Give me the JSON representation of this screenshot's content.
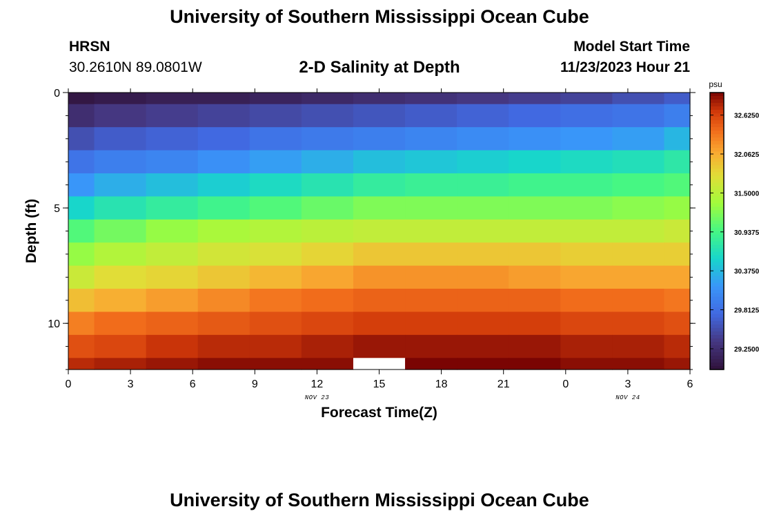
{
  "header": {
    "title": "University of Southern Mississippi Ocean Cube",
    "station": "HRSN",
    "coords": "30.2610N  89.0801W",
    "subtitle": "2-D Salinity at Depth",
    "model_label": "Model Start Time",
    "model_time": "11/23/2023 Hour 21"
  },
  "footer": {
    "title": "University of Southern Mississippi Ocean Cube"
  },
  "chart_data": {
    "type": "heatmap",
    "title": "2-D Salinity at Depth",
    "xlabel": "Forecast Time(Z)",
    "ylabel": "Depth (ft)",
    "x_tick_labels": [
      "0",
      "3",
      "6",
      "9",
      "12",
      "15",
      "18",
      "21",
      "0",
      "3",
      "6"
    ],
    "x_date_labels": [
      {
        "label": "NOV 23",
        "at_tick": 4
      },
      {
        "label": "NOV 24",
        "at_tick": 9
      }
    ],
    "x_range_hours": [
      0,
      30
    ],
    "y_tick_labels": [
      "0",
      "5",
      "10"
    ],
    "y_range_ft": [
      0,
      12
    ],
    "colorbar_unit": "psu",
    "colorbar_ticks": [
      "29.2500",
      "29.8125",
      "30.3750",
      "30.9375",
      "31.5000",
      "32.0625",
      "32.6250"
    ],
    "color_range": [
      28.95,
      32.95
    ],
    "time_edges_hours": [
      0,
      1.25,
      3.75,
      6.25,
      8.75,
      11.25,
      13.75,
      16.25,
      18.75,
      21.25,
      23.75,
      26.25,
      28.75,
      30
    ],
    "depth_edges_ft": [
      0,
      0.5,
      1.5,
      2.5,
      3.5,
      4.5,
      5.5,
      6.5,
      7.5,
      8.5,
      9.5,
      10.5,
      11.5,
      12
    ],
    "missing_value": null,
    "salinity": [
      [
        29.0,
        29.05,
        29.1,
        29.1,
        29.15,
        29.2,
        29.25,
        29.3,
        29.35,
        29.4,
        29.45,
        29.55,
        29.65
      ],
      [
        29.25,
        29.35,
        29.4,
        29.45,
        29.5,
        29.55,
        29.6,
        29.65,
        29.7,
        29.75,
        29.8,
        29.85,
        29.95
      ],
      [
        29.55,
        29.65,
        29.7,
        29.75,
        29.85,
        29.9,
        29.95,
        30.0,
        30.05,
        30.1,
        30.15,
        30.2,
        30.35
      ],
      [
        29.85,
        29.95,
        30.0,
        30.1,
        30.2,
        30.3,
        30.4,
        30.45,
        30.5,
        30.55,
        30.6,
        30.65,
        30.75
      ],
      [
        30.15,
        30.3,
        30.4,
        30.5,
        30.6,
        30.7,
        30.8,
        30.85,
        30.85,
        30.9,
        30.9,
        30.95,
        31.0
      ],
      [
        30.55,
        30.7,
        30.8,
        30.9,
        31.0,
        31.1,
        31.2,
        31.2,
        31.2,
        31.2,
        31.2,
        31.25,
        31.3
      ],
      [
        31.0,
        31.15,
        31.3,
        31.4,
        31.45,
        31.5,
        31.55,
        31.55,
        31.55,
        31.55,
        31.55,
        31.55,
        31.6
      ],
      [
        31.3,
        31.45,
        31.55,
        31.65,
        31.7,
        31.8,
        31.9,
        31.9,
        31.9,
        31.9,
        31.85,
        31.85,
        31.85
      ],
      [
        31.6,
        31.75,
        31.8,
        31.9,
        32.0,
        32.1,
        32.2,
        32.2,
        32.2,
        32.15,
        32.1,
        32.1,
        32.1
      ],
      [
        31.95,
        32.05,
        32.15,
        32.25,
        32.35,
        32.4,
        32.45,
        32.45,
        32.45,
        32.45,
        32.4,
        32.4,
        32.35
      ],
      [
        32.3,
        32.4,
        32.45,
        32.5,
        32.55,
        32.6,
        32.65,
        32.65,
        32.65,
        32.65,
        32.6,
        32.6,
        32.55
      ],
      [
        32.55,
        32.6,
        32.7,
        32.75,
        32.75,
        32.8,
        32.85,
        32.85,
        32.85,
        32.85,
        32.8,
        32.8,
        32.75
      ],
      [
        32.75,
        32.8,
        32.85,
        32.9,
        32.9,
        32.9,
        null,
        32.95,
        32.95,
        32.95,
        32.9,
        32.9,
        32.85
      ]
    ],
    "legend": "right"
  }
}
